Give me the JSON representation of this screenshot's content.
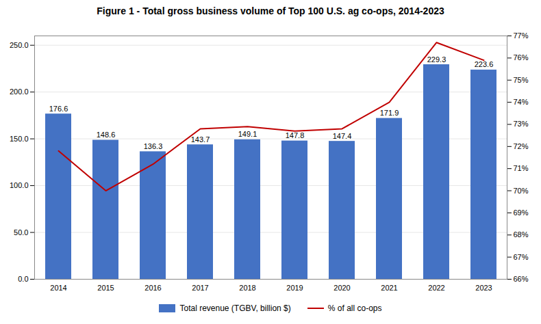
{
  "chart_data": {
    "type": "bar",
    "title": "Figure 1 - Total gross business volume of Top 100 U.S. ag co-ops, 2014-2023",
    "categories": [
      "2014",
      "2015",
      "2016",
      "2017",
      "2018",
      "2019",
      "2020",
      "2021",
      "2022",
      "2023"
    ],
    "series": [
      {
        "name": "Total revenue (TGBV, billion $)",
        "type": "bar",
        "color": "#4472C4",
        "data_labels": true,
        "values": [
          176.6,
          148.6,
          136.3,
          143.7,
          149.1,
          147.8,
          147.4,
          171.9,
          229.3,
          223.6
        ]
      },
      {
        "name": "% of all co-ops",
        "type": "line",
        "color": "#C00000",
        "axis": "y2",
        "values": [
          71.8,
          70.0,
          71.2,
          72.8,
          72.9,
          72.7,
          72.8,
          74.0,
          76.7,
          75.9
        ]
      }
    ],
    "ylim": [
      0,
      260
    ],
    "yticks": [
      {
        "value": 0,
        "label": "0.0"
      },
      {
        "value": 50,
        "label": "50.0"
      },
      {
        "value": 100,
        "label": "100.0"
      },
      {
        "value": 150,
        "label": "150.0"
      },
      {
        "value": 200,
        "label": "200.0"
      },
      {
        "value": 250,
        "label": "250.0"
      }
    ],
    "y2lim": [
      66,
      77
    ],
    "y2ticks": [
      {
        "value": 66,
        "label": "66%"
      },
      {
        "value": 67,
        "label": "67%"
      },
      {
        "value": 68,
        "label": "68%"
      },
      {
        "value": 69,
        "label": "69%"
      },
      {
        "value": 70,
        "label": "70%"
      },
      {
        "value": 71,
        "label": "71%"
      },
      {
        "value": 72,
        "label": "72%"
      },
      {
        "value": 73,
        "label": "73%"
      },
      {
        "value": 74,
        "label": "74%"
      },
      {
        "value": 75,
        "label": "75%"
      },
      {
        "value": 76,
        "label": "76%"
      },
      {
        "value": 77,
        "label": "77%"
      }
    ],
    "grid": true,
    "legend": "bottom"
  }
}
